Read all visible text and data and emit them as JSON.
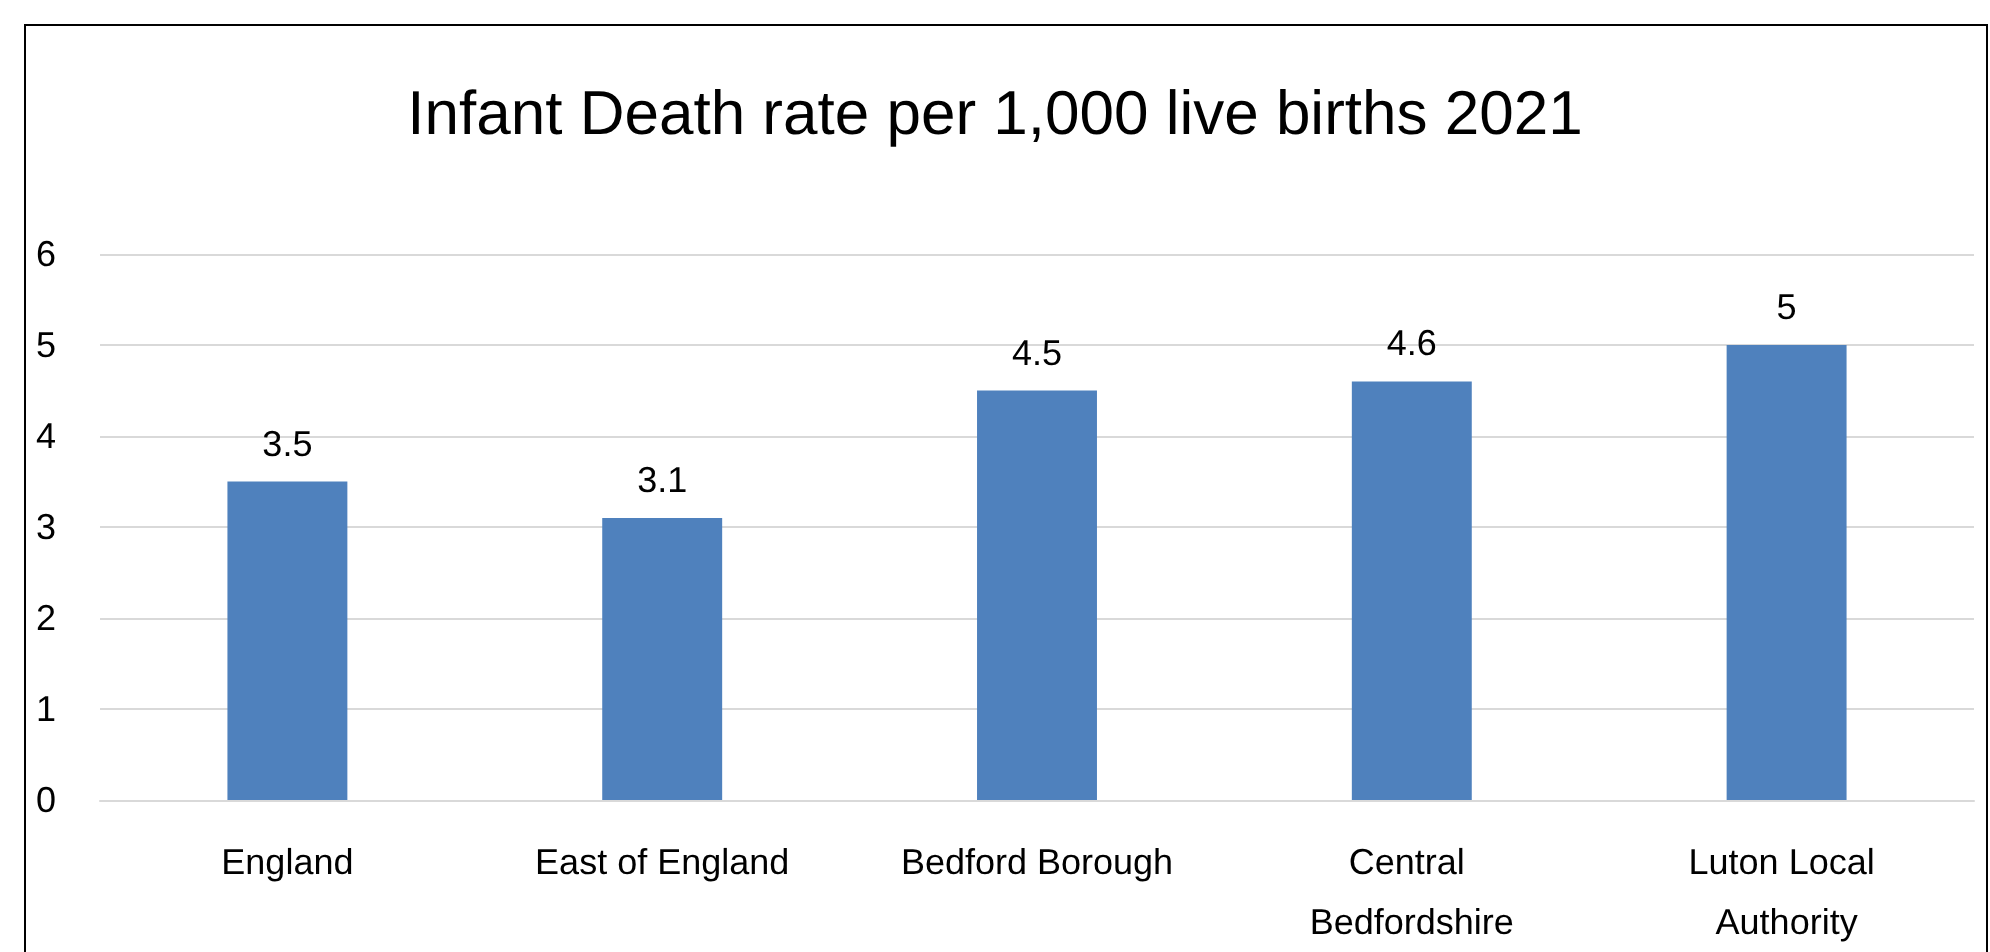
{
  "chart_data": {
    "type": "bar",
    "title": "Infant Death rate per 1,000 live births 2021",
    "categories": [
      "England",
      "East of England",
      "Bedford Borough",
      "Central Bedfordshire",
      "Luton Local Authority"
    ],
    "values": [
      3.5,
      3.1,
      4.5,
      4.6,
      5
    ],
    "color": "#4f81bd",
    "ylim": [
      0,
      6
    ],
    "yticks": [
      0,
      1,
      2,
      3,
      4,
      5,
      6
    ],
    "grid": "y",
    "data_labels": true
  }
}
